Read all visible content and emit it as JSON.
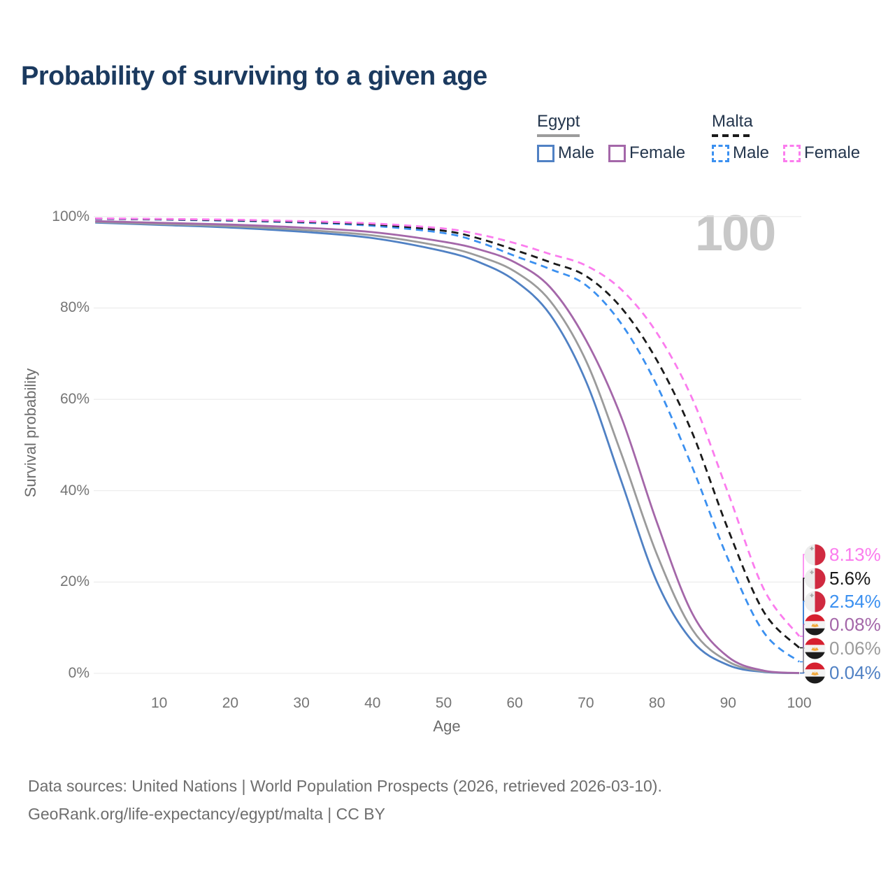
{
  "title": "Probability of surviving to a given age",
  "watermark": "100",
  "legend": {
    "groups": [
      {
        "label": "Egypt",
        "line_style": "solid",
        "underline_color": "#9c9c9c",
        "items": [
          {
            "label": "Male",
            "color": "#5081c4"
          },
          {
            "label": "Female",
            "color": "#a467a9"
          }
        ]
      },
      {
        "label": "Malta",
        "line_style": "dashed",
        "underline_color": "#1a1a1a",
        "items": [
          {
            "label": "Male",
            "color": "#3b90f0"
          },
          {
            "label": "Female",
            "color": "#fb7cee"
          }
        ]
      }
    ]
  },
  "chart_data": {
    "type": "line",
    "title": "Probability of surviving to a given age",
    "xlabel": "Age",
    "ylabel": "Survival probability",
    "grid": true,
    "hovered_age": "100",
    "x_axis": {
      "tick_values": [
        10,
        20,
        30,
        40,
        50,
        60,
        70,
        80,
        90,
        100
      ],
      "ticks": [
        "10",
        "20",
        "30",
        "40",
        "50",
        "60",
        "70",
        "80",
        "90",
        "100"
      ],
      "range": [
        1,
        100
      ]
    },
    "y_axis": {
      "tick_values": [
        0,
        20,
        40,
        60,
        80,
        100
      ],
      "ticks": [
        "0%",
        "20%",
        "40%",
        "60%",
        "80%",
        "100%"
      ],
      "range": [
        0,
        100
      ]
    },
    "x": [
      1,
      10,
      20,
      30,
      40,
      50,
      55,
      60,
      65,
      70,
      75,
      80,
      85,
      90,
      95,
      100
    ],
    "series": [
      {
        "id": "egypt-male",
        "name": "Egypt Male",
        "country": "Egypt",
        "sex": "Male",
        "color": "#5081c4",
        "dash": false,
        "values": [
          98.7,
          98.2,
          97.6,
          96.7,
          95.3,
          92.4,
          90.0,
          86.0,
          78.5,
          64.0,
          42.0,
          20.0,
          7.0,
          1.8,
          0.3,
          0.04
        ],
        "end_value_pct": 0.04
      },
      {
        "id": "egypt-both",
        "name": "Egypt Both sexes",
        "country": "Egypt",
        "sex": "Both",
        "color": "#9b9b9b",
        "dash": false,
        "values": [
          98.85,
          98.4,
          97.9,
          97.1,
          95.9,
          93.4,
          91.3,
          88.0,
          81.5,
          68.5,
          48.0,
          26.0,
          9.5,
          2.6,
          0.45,
          0.06
        ],
        "end_value_pct": 0.06
      },
      {
        "id": "egypt-female",
        "name": "Egypt Female",
        "country": "Egypt",
        "sex": "Female",
        "color": "#a467a9",
        "dash": false,
        "values": [
          99.0,
          98.65,
          98.25,
          97.6,
          96.6,
          94.5,
          92.8,
          90.0,
          84.5,
          73.0,
          56.0,
          33.0,
          13.0,
          3.6,
          0.6,
          0.08
        ],
        "end_value_pct": 0.08
      },
      {
        "id": "malta-male",
        "name": "Malta Male",
        "country": "Malta",
        "sex": "Male",
        "color": "#3b90f0",
        "dash": true,
        "values": [
          99.5,
          99.35,
          99.1,
          98.7,
          98.0,
          96.4,
          94.4,
          91.4,
          88.5,
          85.0,
          76.5,
          63.0,
          45.0,
          25.0,
          9.0,
          2.54
        ],
        "end_value_pct": 2.54
      },
      {
        "id": "malta-both",
        "name": "Malta Both sexes",
        "country": "Malta",
        "sex": "Both",
        "color": "#1a1a1a",
        "dash": true,
        "values": [
          99.55,
          99.42,
          99.2,
          98.85,
          98.3,
          96.9,
          95.2,
          92.7,
          90.0,
          87.0,
          80.0,
          68.5,
          52.5,
          31.5,
          13.5,
          5.6
        ],
        "end_value_pct": 5.6
      },
      {
        "id": "malta-female",
        "name": "Malta Female",
        "country": "Malta",
        "sex": "Female",
        "color": "#fb7cee",
        "dash": true,
        "values": [
          99.6,
          99.5,
          99.32,
          99.0,
          98.5,
          97.4,
          96.1,
          94.2,
          91.8,
          89.3,
          84.0,
          74.5,
          60.0,
          39.5,
          18.5,
          8.13
        ],
        "end_value_pct": 8.13
      }
    ],
    "endpoints": [
      {
        "series": "malta-female",
        "flag": "malta",
        "label": "8.13%",
        "color": "#fb7cee"
      },
      {
        "series": "malta-both",
        "flag": "malta",
        "label": "5.6%",
        "color": "#1a1a1a"
      },
      {
        "series": "malta-male",
        "flag": "malta",
        "label": "2.54%",
        "color": "#3b90f0"
      },
      {
        "series": "egypt-female",
        "flag": "egypt",
        "label": "0.08%",
        "color": "#a467a9"
      },
      {
        "series": "egypt-both",
        "flag": "egypt",
        "label": "0.06%",
        "color": "#9b9b9b"
      },
      {
        "series": "egypt-male",
        "flag": "egypt",
        "label": "0.04%",
        "color": "#5081c4"
      }
    ]
  },
  "footer": {
    "line1": "Data sources: United Nations | World Population Prospects (2026, retrieved 2026-03-10).",
    "line2": "GeoRank.org/life-expectancy/egypt/malta | CC BY"
  }
}
